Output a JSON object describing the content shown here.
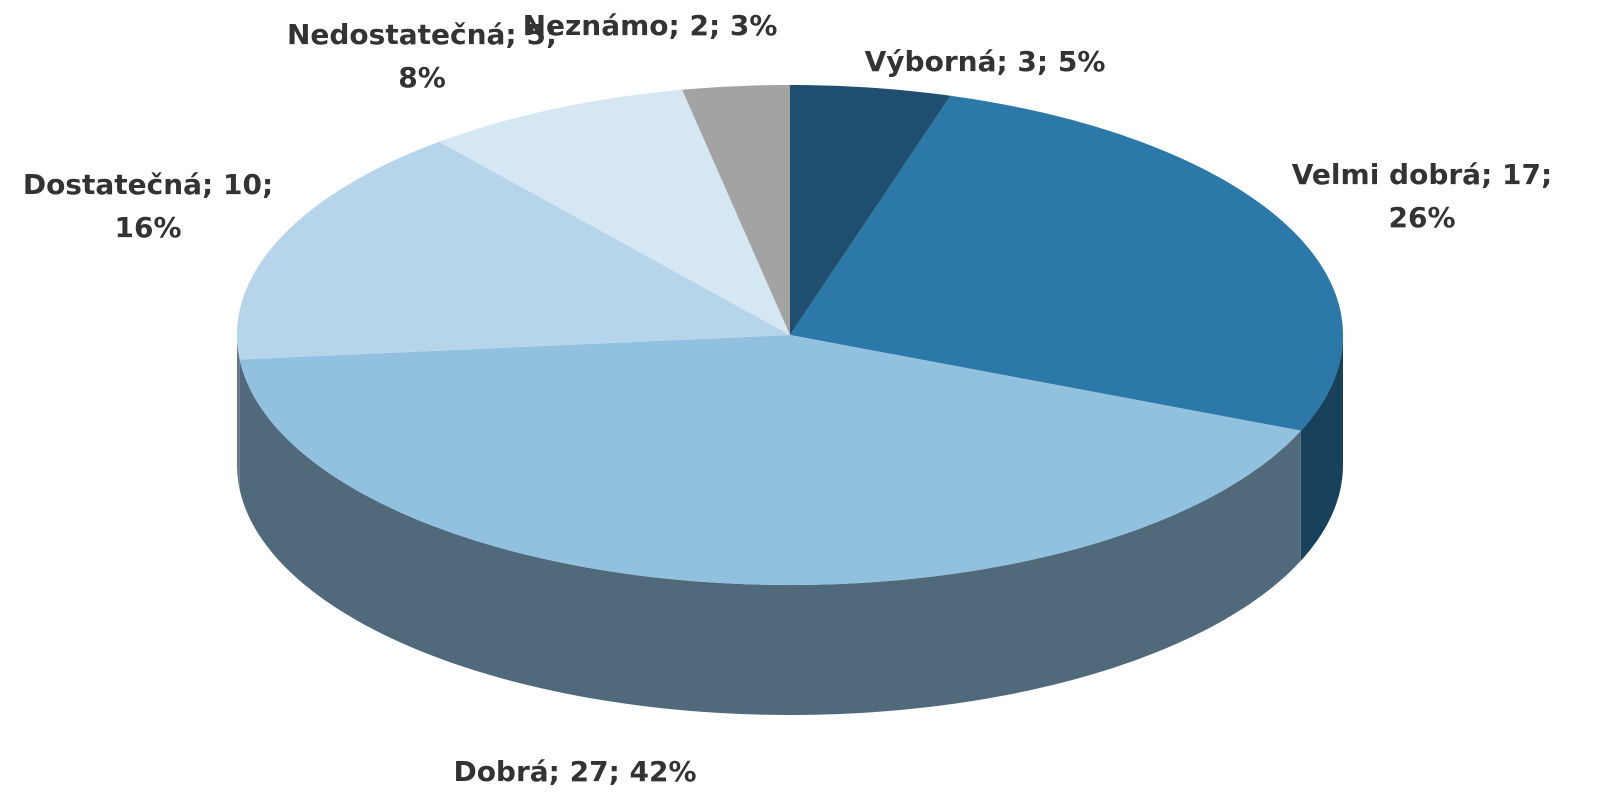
{
  "chart_data": {
    "type": "pie3d",
    "categories": [
      "Výborná",
      "Velmi dobrá",
      "Dobrá",
      "Dostatečná",
      "Nedostatečná",
      "Neznámo"
    ],
    "values": [
      3,
      17,
      27,
      10,
      5,
      2
    ],
    "value_labels": [
      "Výborná; 3; 5%",
      "Velmi dobrá; 17; 26%",
      "Dobrá; 27; 42%",
      "Dostatečná; 10; 16%",
      "Nedostatečná; 5; 8%",
      "Neznámo; 2; 3%"
    ],
    "colors": [
      "#1f4e6e",
      "#2c78a8",
      "#92c1e0",
      "#b6d5ea",
      "#d6e7f4",
      "#a3a3a3"
    ]
  }
}
